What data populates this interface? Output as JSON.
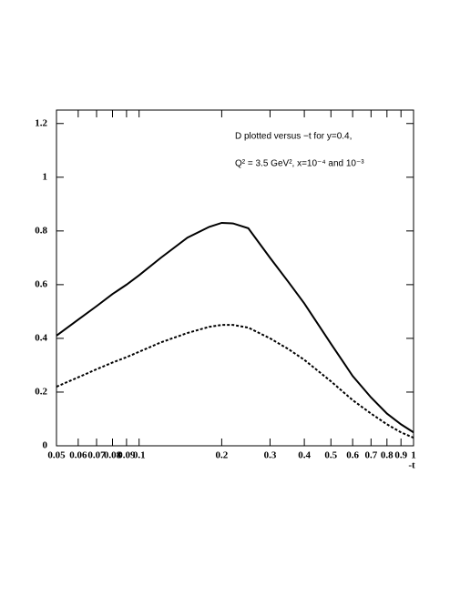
{
  "chart_data": {
    "type": "line",
    "annotations": [
      "D plotted versus −t for y=0.4,",
      "Q² = 3.5 GeV², x=10⁻⁴ and 10⁻³"
    ],
    "x_label": "-t",
    "x": [
      0.05,
      0.06,
      0.07,
      0.08,
      0.09,
      0.1,
      0.12,
      0.15,
      0.18,
      0.2,
      0.22,
      0.25,
      0.3,
      0.35,
      0.4,
      0.5,
      0.6,
      0.7,
      0.8,
      0.9,
      1
    ],
    "series": [
      {
        "color": "#000000",
        "dash": "solid",
        "values": [
          0.41,
          0.47,
          0.52,
          0.565,
          0.6,
          0.635,
          0.7,
          0.775,
          0.815,
          0.83,
          0.828,
          0.81,
          0.7,
          0.61,
          0.53,
          0.38,
          0.26,
          0.18,
          0.12,
          0.08,
          0.05
        ]
      },
      {
        "color": "#000000",
        "dash": "dashed",
        "values": [
          0.22,
          0.255,
          0.285,
          0.31,
          0.33,
          0.35,
          0.385,
          0.42,
          0.443,
          0.45,
          0.45,
          0.44,
          0.4,
          0.36,
          0.32,
          0.24,
          0.17,
          0.12,
          0.08,
          0.05,
          0.03
        ]
      }
    ],
    "xscale": "log",
    "xlim": [
      0.05,
      1
    ],
    "xticks": [
      0.05,
      0.06,
      0.07,
      0.08,
      0.09,
      0.1,
      0.2,
      0.3,
      0.4,
      0.5,
      0.6,
      0.7,
      0.8,
      0.9,
      1
    ],
    "ylim": [
      0,
      1.25
    ],
    "yticks": [
      0,
      0.2,
      0.4,
      0.6,
      0.8,
      1,
      1.2
    ]
  }
}
